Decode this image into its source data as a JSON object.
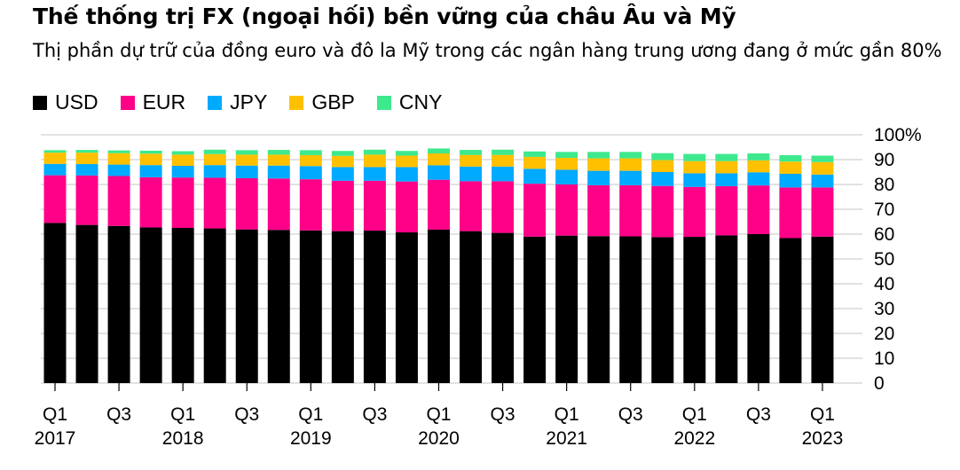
{
  "title": "Thế thống trị FX (ngoại hối) bền vững của châu Âu và Mỹ",
  "subtitle": "Thị phần dự trữ của đồng euro và đô la Mỹ trong các ngân hàng trung ương đang ở mức gần 80%",
  "chart_data": {
    "type": "bar",
    "stacked": true,
    "title": "Thế thống trị FX (ngoại hối) bền vững của châu Âu và Mỹ",
    "subtitle": "Thị phần dự trữ của đồng euro và đô la Mỹ trong các ngân hàng trung ương đang ở mức gần 80%",
    "xlabel": "",
    "ylabel": "",
    "ylim": [
      0,
      100
    ],
    "y_ticks": [
      0,
      10,
      20,
      30,
      40,
      50,
      60,
      70,
      80,
      90,
      100
    ],
    "y_tick_labels": [
      "0",
      "10",
      "20",
      "30",
      "40",
      "50",
      "60",
      "70",
      "80",
      "90",
      "100%"
    ],
    "y_axis_position": "right",
    "grid": true,
    "legend_position": "top-left",
    "categories": [
      "Q1 2017",
      "Q2 2017",
      "Q3 2017",
      "Q4 2017",
      "Q1 2018",
      "Q2 2018",
      "Q3 2018",
      "Q4 2018",
      "Q1 2019",
      "Q2 2019",
      "Q3 2019",
      "Q4 2019",
      "Q1 2020",
      "Q2 2020",
      "Q3 2020",
      "Q4 2020",
      "Q1 2021",
      "Q2 2021",
      "Q3 2021",
      "Q4 2021",
      "Q1 2022",
      "Q2 2022",
      "Q3 2022",
      "Q4 2022",
      "Q1 2023"
    ],
    "x_tick_labels": [
      {
        "index": 0,
        "line1": "Q1",
        "line2": "2017"
      },
      {
        "index": 2,
        "line1": "Q3",
        "line2": ""
      },
      {
        "index": 4,
        "line1": "Q1",
        "line2": "2018"
      },
      {
        "index": 6,
        "line1": "Q3",
        "line2": ""
      },
      {
        "index": 8,
        "line1": "Q1",
        "line2": "2019"
      },
      {
        "index": 10,
        "line1": "Q3",
        "line2": ""
      },
      {
        "index": 12,
        "line1": "Q1",
        "line2": "2020"
      },
      {
        "index": 14,
        "line1": "Q3",
        "line2": ""
      },
      {
        "index": 16,
        "line1": "Q1",
        "line2": "2021"
      },
      {
        "index": 18,
        "line1": "Q3",
        "line2": ""
      },
      {
        "index": 20,
        "line1": "Q1",
        "line2": "2022"
      },
      {
        "index": 22,
        "line1": "Q3",
        "line2": ""
      },
      {
        "index": 24,
        "line1": "Q1",
        "line2": "2023"
      }
    ],
    "series": [
      {
        "name": "USD",
        "color": "#000000",
        "values": [
          64.5,
          63.7,
          63.3,
          62.7,
          62.5,
          62.3,
          61.9,
          61.7,
          61.5,
          61.2,
          61.4,
          60.7,
          61.8,
          61.2,
          60.5,
          59.0,
          59.4,
          59.2,
          59.1,
          58.8,
          58.9,
          59.5,
          60.0,
          58.4,
          59.0
        ]
      },
      {
        "name": "EUR",
        "color": "#ff0088",
        "values": [
          19.2,
          19.9,
          20.1,
          20.2,
          20.3,
          20.4,
          20.6,
          20.7,
          20.6,
          20.3,
          20.1,
          20.5,
          20.1,
          20.1,
          20.8,
          21.3,
          20.6,
          20.5,
          20.6,
          20.6,
          20.1,
          19.8,
          19.6,
          20.4,
          19.8
        ]
      },
      {
        "name": "JPY",
        "color": "#00aaff",
        "values": [
          4.6,
          4.6,
          4.6,
          4.9,
          4.7,
          5.1,
          5.1,
          5.2,
          5.3,
          5.5,
          5.5,
          5.8,
          5.8,
          5.9,
          5.9,
          6.0,
          5.9,
          5.8,
          5.8,
          5.6,
          5.5,
          5.2,
          5.3,
          5.5,
          5.2
        ]
      },
      {
        "name": "GBP",
        "color": "#ffc000",
        "values": [
          4.5,
          4.6,
          4.6,
          4.6,
          4.5,
          4.4,
          4.4,
          4.4,
          4.4,
          4.5,
          5.0,
          4.6,
          4.8,
          4.7,
          4.7,
          4.8,
          4.8,
          5.0,
          5.0,
          4.8,
          4.9,
          4.9,
          4.8,
          4.9,
          5.0
        ]
      },
      {
        "name": "CNY",
        "color": "#3de98c",
        "values": [
          1.0,
          1.1,
          1.1,
          1.2,
          1.4,
          1.8,
          1.8,
          1.9,
          2.0,
          2.0,
          2.0,
          1.9,
          2.0,
          2.0,
          2.1,
          2.2,
          2.4,
          2.6,
          2.6,
          2.8,
          2.9,
          2.9,
          2.8,
          2.6,
          2.6
        ]
      }
    ]
  }
}
